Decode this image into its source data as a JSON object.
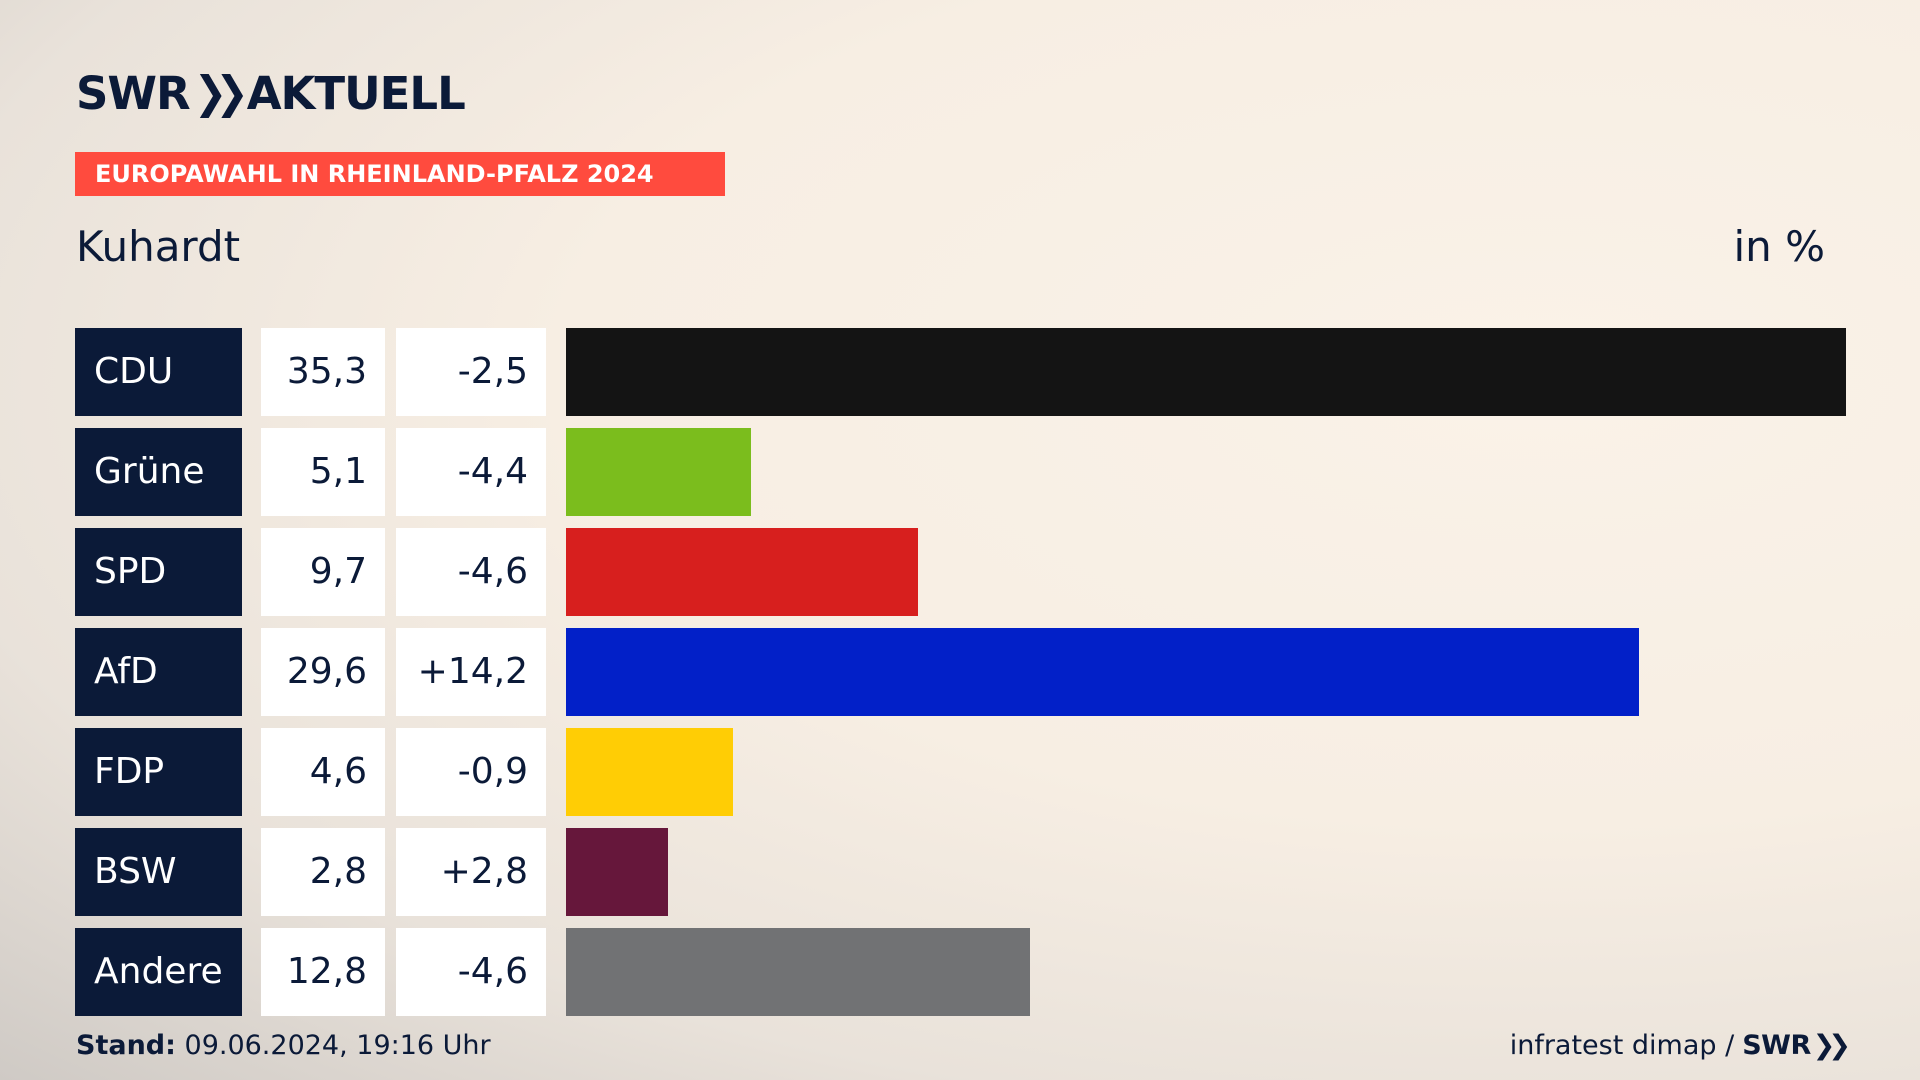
{
  "brand": {
    "name_left": "SWR",
    "chevrons": "»",
    "name_right": "AKTUELL"
  },
  "banner": "EUROPAWAHL IN RHEINLAND-PFALZ 2024",
  "place": "Kuhardt",
  "unit": "in %",
  "footer": {
    "stand_label": "Stand:",
    "stand_value": "09.06.2024, 19:16 Uhr",
    "source": "infratest dimap /",
    "source_brand": "SWR",
    "source_chevrons": "»"
  },
  "chart_data": {
    "type": "bar",
    "orientation": "horizontal",
    "categories": [
      "CDU",
      "Grüne",
      "SPD",
      "AfD",
      "FDP",
      "BSW",
      "Andere"
    ],
    "values": [
      35.3,
      5.1,
      9.7,
      29.6,
      4.6,
      2.8,
      12.8
    ],
    "value_labels": [
      "35,3",
      "5,1",
      "9,7",
      "29,6",
      "4,6",
      "2,8",
      "12,8"
    ],
    "differences": [
      -2.5,
      -4.4,
      -4.6,
      14.2,
      -0.9,
      2.8,
      -4.6
    ],
    "difference_labels": [
      "-2,5",
      "-4,4",
      "-4,6",
      "+14,2",
      "-0,9",
      "+2,8",
      "-4,6"
    ],
    "colors": [
      "#141414",
      "#7bbd1d",
      "#d71f1e",
      "#0220c8",
      "#ffcd05",
      "#66173b",
      "#717274"
    ],
    "xlim": [
      0,
      35.3
    ]
  }
}
